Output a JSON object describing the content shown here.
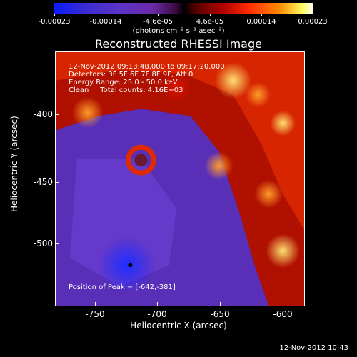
{
  "colorbar": {
    "tick_labels": [
      "-0.00023",
      "-0.00014",
      "-4.6e-05",
      "4.6e-05",
      "0.00014",
      "0.00023"
    ],
    "units": "(photons cm⁻² s⁻¹ asec⁻²)"
  },
  "title": "Reconstructed RHESSI Image",
  "annotations": {
    "time_range": "12-Nov-2012 09:13:48.000 to 09:17:20.000",
    "detectors": "Detectors: 3F 5F 6F 7F 8F 9F, Att 0",
    "energy_range": "Energy Range: 25.0 - 50.0 keV",
    "method": "Clean     Total counts: 4.16E+03",
    "peak": "Position of Peak = [-642,-381]"
  },
  "axes": {
    "xlabel": "Heliocentric X (arcsec)",
    "ylabel": "Heliocentric Y (arcsec)",
    "xticks": [
      "-750",
      "-700",
      "-650",
      "-600"
    ],
    "yticks": [
      "-400",
      "-450",
      "-500"
    ]
  },
  "footer_timestamp": "12-Nov-2012 10:43",
  "colors": {
    "background": "#000000",
    "foreground": "#ffffff"
  }
}
